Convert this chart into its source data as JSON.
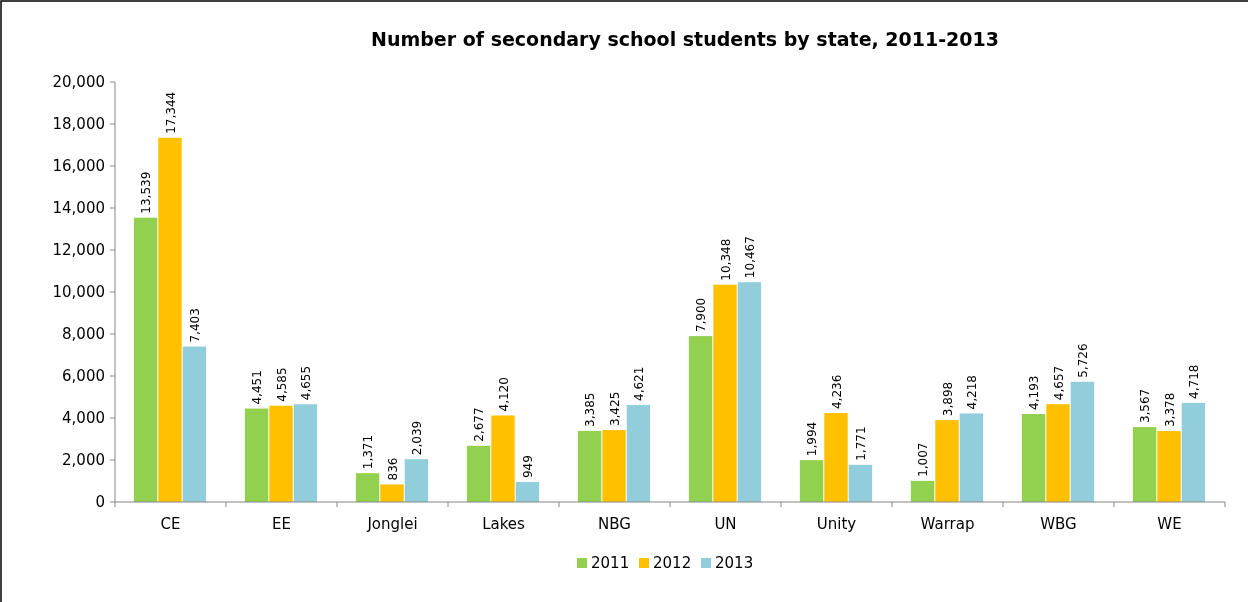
{
  "chart_data": {
    "type": "bar",
    "title": "Number of secondary school students by state, 2011-2013",
    "categories": [
      "CE",
      "EE",
      "Jonglei",
      "Lakes",
      "NBG",
      "UN",
      "Unity",
      "Warrap",
      "WBG",
      "WE"
    ],
    "series": [
      {
        "name": "2011",
        "color": "#92d050",
        "values": [
          13539,
          4451,
          1371,
          2677,
          3385,
          7900,
          1994,
          1007,
          4193,
          3567
        ],
        "value_labels": [
          "13,539",
          "4,451",
          "1,371",
          "2,677",
          "3,385",
          "7,900",
          "1,994",
          "1,007",
          "4,193",
          "3,567"
        ]
      },
      {
        "name": "2012",
        "color": "#ffc000",
        "values": [
          17344,
          4585,
          836,
          4120,
          3425,
          10348,
          4236,
          3898,
          4657,
          3378
        ],
        "value_labels": [
          "17,344",
          "4,585",
          "836",
          "4,120",
          "3,425",
          "10,348",
          "4,236",
          "3,898",
          "4,657",
          "3,378"
        ]
      },
      {
        "name": "2013",
        "color": "#92cddc",
        "values": [
          7403,
          4655,
          2039,
          949,
          4621,
          10467,
          1771,
          4218,
          5726,
          4718
        ],
        "value_labels": [
          "7,403",
          "4,655",
          "2,039",
          "949",
          "4,621",
          "10,467",
          "1,771",
          "4,218",
          "5,726",
          "4,718"
        ]
      }
    ],
    "ylim": [
      0,
      20000
    ],
    "yticks": [
      {
        "value": 0,
        "label": "0"
      },
      {
        "value": 2000,
        "label": "2,000"
      },
      {
        "value": 4000,
        "label": "4,000"
      },
      {
        "value": 6000,
        "label": "6,000"
      },
      {
        "value": 8000,
        "label": "8,000"
      },
      {
        "value": 10000,
        "label": "10,000"
      },
      {
        "value": 12000,
        "label": "12,000"
      },
      {
        "value": 14000,
        "label": "14,000"
      },
      {
        "value": 16000,
        "label": "16,000"
      },
      {
        "value": 18000,
        "label": "18,000"
      },
      {
        "value": 20000,
        "label": "20,000"
      }
    ],
    "grid": false,
    "legend": "bottom"
  }
}
